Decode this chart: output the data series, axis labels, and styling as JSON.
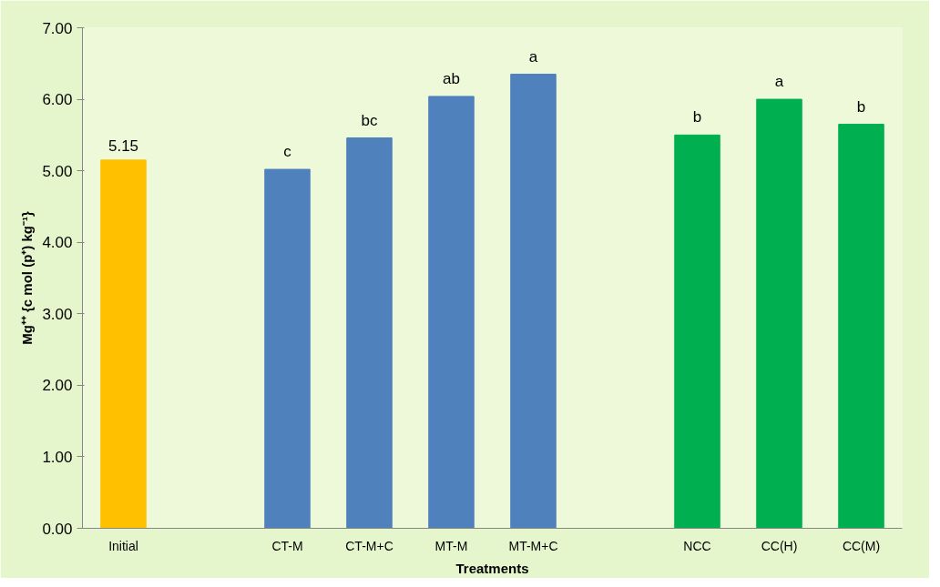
{
  "chart_data": {
    "type": "bar",
    "xlabel": "Treatments",
    "ylabel": "Mg⁺⁺ {c mol (p⁺) kg⁻¹}",
    "categories": [
      "Initial",
      null,
      "CT-M",
      "CT-M+C",
      "MT-M",
      "MT-M+C",
      null,
      "NCC",
      "CC(H)",
      "CC(M)"
    ],
    "values": [
      5.15,
      null,
      5.02,
      5.46,
      6.04,
      6.35,
      null,
      5.5,
      6.0,
      5.65
    ],
    "colors": [
      "#ffc000",
      null,
      "#4f81bd",
      "#4f81bd",
      "#4f81bd",
      "#4f81bd",
      null,
      "#00b050",
      "#00b050",
      "#00b050"
    ],
    "value_labels": [
      "5.15",
      null,
      "c",
      "bc",
      "ab",
      "a",
      null,
      "b",
      "a",
      "b"
    ],
    "ylim": [
      0,
      7
    ],
    "yticks": [
      {
        "value": 0,
        "label": "0.00"
      },
      {
        "value": 1,
        "label": "1.00"
      },
      {
        "value": 2,
        "label": "2.00"
      },
      {
        "value": 3,
        "label": "3.00"
      },
      {
        "value": 4,
        "label": "4.00"
      },
      {
        "value": 5,
        "label": "5.00"
      },
      {
        "value": 6,
        "label": "6.00"
      },
      {
        "value": 7,
        "label": "7.00"
      }
    ]
  }
}
